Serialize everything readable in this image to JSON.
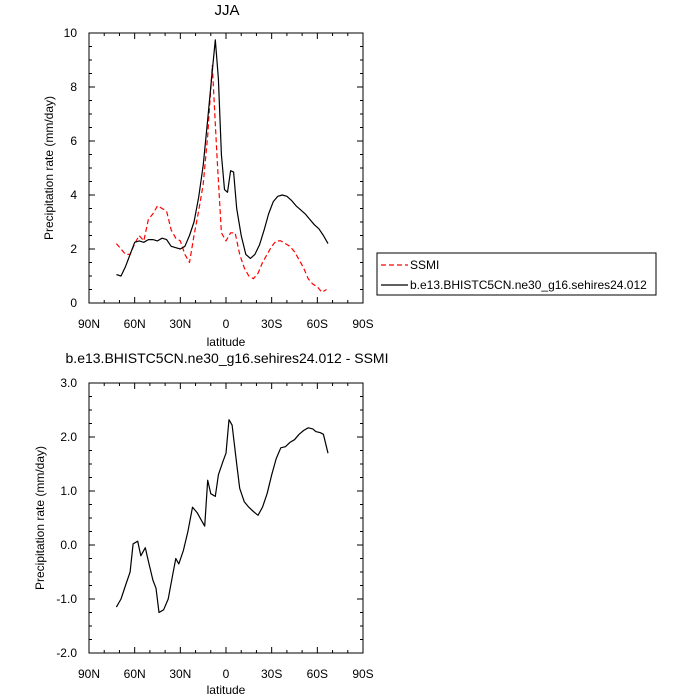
{
  "chart_data": [
    {
      "type": "line",
      "title": "JJA",
      "xlabel": "latitude",
      "ylabel": "Precipitation rate (mm/day)",
      "xlim": [
        90,
        -90
      ],
      "ylim": [
        0,
        10
      ],
      "x_ticks": [
        {
          "value": 90,
          "label": "90N"
        },
        {
          "value": 60,
          "label": "60N"
        },
        {
          "value": 30,
          "label": "30N"
        },
        {
          "value": 0,
          "label": "0"
        },
        {
          "value": -30,
          "label": "30S"
        },
        {
          "value": -60,
          "label": "60S"
        },
        {
          "value": -90,
          "label": "90S"
        }
      ],
      "y_ticks": [
        {
          "value": 0,
          "label": "0"
        },
        {
          "value": 2,
          "label": "2"
        },
        {
          "value": 4,
          "label": "4"
        },
        {
          "value": 6,
          "label": "6"
        },
        {
          "value": 8,
          "label": "8"
        },
        {
          "value": 10,
          "label": "10"
        }
      ],
      "legend": "right",
      "series": [
        {
          "name": "SSMI",
          "color": "#ff0000",
          "dash": "dashed",
          "points": [
            [
              72,
              2.2
            ],
            [
              69,
              2.0
            ],
            [
              66,
              1.8
            ],
            [
              63,
              1.8
            ],
            [
              60,
              2.2
            ],
            [
              57,
              2.5
            ],
            [
              54,
              2.3
            ],
            [
              51,
              3.1
            ],
            [
              48,
              3.3
            ],
            [
              45,
              3.6
            ],
            [
              42,
              3.5
            ],
            [
              39,
              3.4
            ],
            [
              36,
              2.7
            ],
            [
              33,
              2.4
            ],
            [
              30,
              2.3
            ],
            [
              27,
              1.8
            ],
            [
              24,
              1.5
            ],
            [
              21,
              2.5
            ],
            [
              18,
              3.4
            ],
            [
              15,
              4.4
            ],
            [
              12,
              6.2
            ],
            [
              9,
              8.8
            ],
            [
              6,
              5.5
            ],
            [
              3,
              2.6
            ],
            [
              0,
              2.3
            ],
            [
              -3,
              2.6
            ],
            [
              -6,
              2.6
            ],
            [
              -9,
              1.8
            ],
            [
              -12,
              1.3
            ],
            [
              -15,
              1.0
            ],
            [
              -18,
              0.9
            ],
            [
              -21,
              1.1
            ],
            [
              -24,
              1.5
            ],
            [
              -27,
              1.8
            ],
            [
              -30,
              2.1
            ],
            [
              -33,
              2.3
            ],
            [
              -36,
              2.3
            ],
            [
              -39,
              2.2
            ],
            [
              -42,
              2.1
            ],
            [
              -45,
              1.9
            ],
            [
              -48,
              1.6
            ],
            [
              -51,
              1.3
            ],
            [
              -54,
              0.9
            ],
            [
              -57,
              0.7
            ],
            [
              -60,
              0.6
            ],
            [
              -63,
              0.4
            ],
            [
              -66,
              0.5
            ]
          ]
        },
        {
          "name": "b.e13.BHISTC5CN.ne30_g16.sehires24.012",
          "color": "#000000",
          "dash": "solid",
          "points": [
            [
              72,
              1.05
            ],
            [
              69,
              1.0
            ],
            [
              66,
              1.35
            ],
            [
              63,
              1.8
            ],
            [
              60,
              2.25
            ],
            [
              57,
              2.3
            ],
            [
              54,
              2.25
            ],
            [
              51,
              2.35
            ],
            [
              48,
              2.35
            ],
            [
              45,
              2.3
            ],
            [
              42,
              2.4
            ],
            [
              39,
              2.35
            ],
            [
              36,
              2.1
            ],
            [
              33,
              2.05
            ],
            [
              30,
              2.0
            ],
            [
              27,
              2.1
            ],
            [
              24,
              2.5
            ],
            [
              21,
              3.0
            ],
            [
              18,
              3.9
            ],
            [
              15,
              5.1
            ],
            [
              12,
              6.8
            ],
            [
              9,
              8.6
            ],
            [
              7,
              9.75
            ],
            [
              5,
              8.3
            ],
            [
              3,
              5.5
            ],
            [
              1,
              4.2
            ],
            [
              -1,
              4.1
            ],
            [
              -3,
              4.9
            ],
            [
              -5,
              4.85
            ],
            [
              -7,
              3.5
            ],
            [
              -10,
              2.5
            ],
            [
              -13,
              1.8
            ],
            [
              -16,
              1.65
            ],
            [
              -19,
              1.8
            ],
            [
              -22,
              2.15
            ],
            [
              -25,
              2.7
            ],
            [
              -28,
              3.3
            ],
            [
              -31,
              3.75
            ],
            [
              -34,
              3.95
            ],
            [
              -37,
              4.0
            ],
            [
              -40,
              3.95
            ],
            [
              -43,
              3.8
            ],
            [
              -46,
              3.6
            ],
            [
              -49,
              3.45
            ],
            [
              -52,
              3.3
            ],
            [
              -55,
              3.1
            ],
            [
              -58,
              2.9
            ],
            [
              -61,
              2.75
            ],
            [
              -64,
              2.5
            ],
            [
              -67,
              2.2
            ]
          ]
        }
      ]
    },
    {
      "type": "line",
      "title": "b.e13.BHISTC5CN.ne30_g16.sehires24.012 - SSMI",
      "xlabel": "latitude",
      "ylabel": "Precipitation rate (mm/day)",
      "xlim": [
        90,
        -90
      ],
      "ylim": [
        -2.0,
        3.0
      ],
      "x_ticks": [
        {
          "value": 90,
          "label": "90N"
        },
        {
          "value": 60,
          "label": "60N"
        },
        {
          "value": 30,
          "label": "30N"
        },
        {
          "value": 0,
          "label": "0"
        },
        {
          "value": -30,
          "label": "30S"
        },
        {
          "value": -60,
          "label": "60S"
        },
        {
          "value": -90,
          "label": "90S"
        }
      ],
      "y_ticks": [
        {
          "value": -2.0,
          "label": "-2.0"
        },
        {
          "value": -1.0,
          "label": "-1.0"
        },
        {
          "value": 0.0,
          "label": "0.0"
        },
        {
          "value": 1.0,
          "label": "1.0"
        },
        {
          "value": 2.0,
          "label": "2.0"
        },
        {
          "value": 3.0,
          "label": "3.0"
        }
      ],
      "series": [
        {
          "color": "#000000",
          "dash": "solid",
          "points": [
            [
              72,
              -1.15
            ],
            [
              69,
              -1.0
            ],
            [
              66,
              -0.75
            ],
            [
              63,
              -0.5
            ],
            [
              61,
              0.02
            ],
            [
              58,
              0.07
            ],
            [
              56,
              -0.2
            ],
            [
              53,
              -0.05
            ],
            [
              51,
              -0.3
            ],
            [
              48,
              -0.65
            ],
            [
              46,
              -0.8
            ],
            [
              44,
              -1.25
            ],
            [
              41,
              -1.2
            ],
            [
              38,
              -1.0
            ],
            [
              35,
              -0.55
            ],
            [
              33,
              -0.25
            ],
            [
              31,
              -0.35
            ],
            [
              28,
              -0.1
            ],
            [
              25,
              0.25
            ],
            [
              22,
              0.7
            ],
            [
              19,
              0.6
            ],
            [
              16,
              0.45
            ],
            [
              14,
              0.35
            ],
            [
              12,
              1.2
            ],
            [
              10,
              0.95
            ],
            [
              7,
              0.9
            ],
            [
              5,
              1.3
            ],
            [
              2,
              1.55
            ],
            [
              0,
              1.7
            ],
            [
              -2,
              2.32
            ],
            [
              -4,
              2.22
            ],
            [
              -7,
              1.5
            ],
            [
              -9,
              1.05
            ],
            [
              -12,
              0.8
            ],
            [
              -15,
              0.7
            ],
            [
              -18,
              0.62
            ],
            [
              -21,
              0.55
            ],
            [
              -24,
              0.7
            ],
            [
              -27,
              0.95
            ],
            [
              -30,
              1.3
            ],
            [
              -33,
              1.6
            ],
            [
              -36,
              1.8
            ],
            [
              -39,
              1.82
            ],
            [
              -42,
              1.9
            ],
            [
              -45,
              1.95
            ],
            [
              -48,
              2.05
            ],
            [
              -51,
              2.12
            ],
            [
              -54,
              2.17
            ],
            [
              -57,
              2.15
            ],
            [
              -59,
              2.1
            ],
            [
              -62,
              2.08
            ],
            [
              -64,
              2.05
            ],
            [
              -67,
              1.7
            ]
          ]
        }
      ]
    }
  ]
}
